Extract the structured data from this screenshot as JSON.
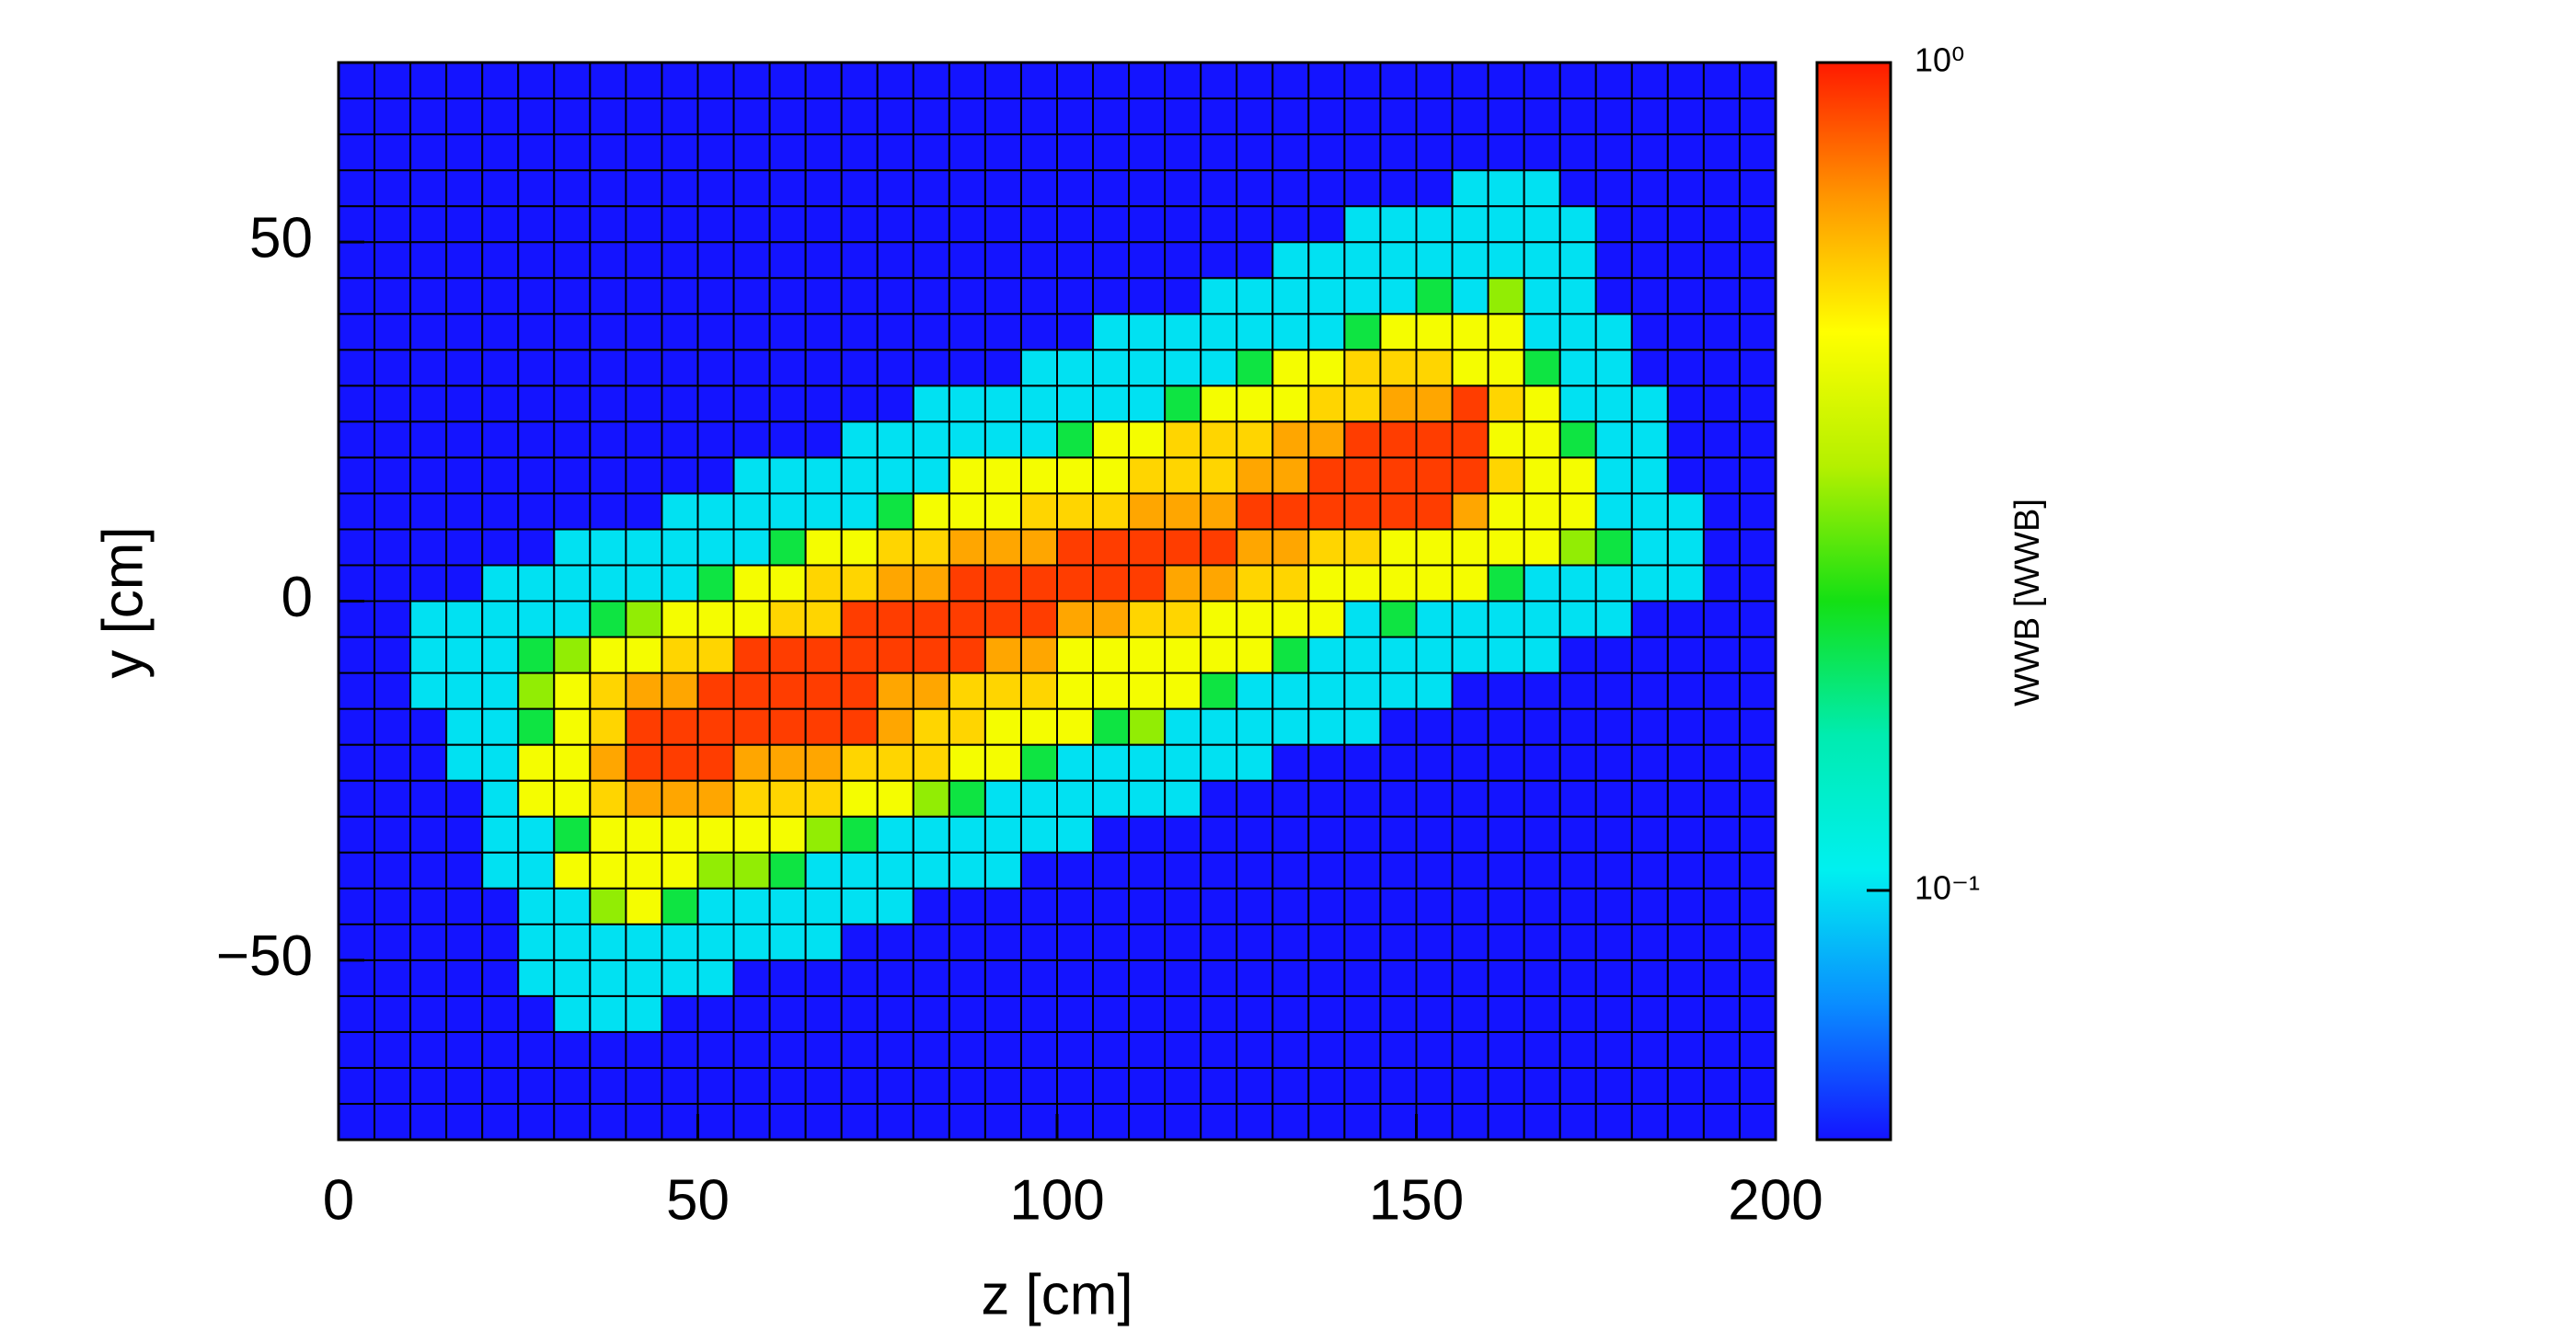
{
  "chart_data": {
    "type": "heatmap",
    "xlabel": "z [cm]",
    "ylabel": "y [cm]",
    "zlabel": "WWB [WWB]",
    "xlim": [
      0,
      200
    ],
    "ylim": [
      -75,
      75
    ],
    "zlim": [
      0.05,
      1
    ],
    "zlog": true,
    "xticks": [
      0,
      50,
      100,
      150,
      200
    ],
    "yticks": [
      {
        "value": -50,
        "label": "−50"
      },
      0,
      50
    ],
    "zticks": [
      {
        "value": 0.1,
        "label": "10⁻¹"
      },
      {
        "value": 1,
        "label": "10⁰"
      }
    ],
    "colormap": [
      "#1414ff",
      "#0a8cff",
      "#00f0f0",
      "#00ecb0",
      "#14e014",
      "#b4f000",
      "#ffff00",
      "#ff9600",
      "#ff1a00"
    ],
    "grid_color": "#000000",
    "xbins": [
      0,
      5,
      10,
      15,
      20,
      25,
      30,
      35,
      40,
      45,
      50,
      55,
      60,
      65,
      70,
      75,
      80,
      85,
      90,
      95,
      100,
      105,
      110,
      115,
      120,
      125,
      130,
      135,
      140,
      145,
      150,
      155,
      160,
      165,
      170,
      175,
      180,
      185,
      190,
      195,
      200
    ],
    "ybins": [
      -75,
      -70,
      -65,
      -60,
      -55,
      -50,
      -45,
      -40,
      -35,
      -30,
      -25,
      -20,
      -15,
      -10,
      -5,
      0,
      5,
      10,
      15,
      20,
      25,
      30,
      35,
      40,
      45,
      50,
      55,
      60,
      65,
      70,
      75
    ],
    "values": [
      [
        0.05,
        0.05,
        0.05,
        0.05,
        0.05,
        0.05,
        0.05,
        0.05,
        0.05,
        0.05,
        0.05,
        0.05,
        0.05,
        0.05,
        0.05,
        0.05,
        0.05,
        0.05,
        0.05,
        0.05,
        0.05,
        0.05,
        0.05,
        0.05,
        0.05,
        0.05,
        0.05,
        0.05,
        0.05,
        0.05,
        0.05,
        0.05,
        0.05,
        0.05,
        0.05,
        0.05,
        0.05,
        0.05,
        0.05,
        0.05
      ],
      [
        0.05,
        0.05,
        0.05,
        0.05,
        0.05,
        0.05,
        0.05,
        0.05,
        0.05,
        0.05,
        0.05,
        0.05,
        0.05,
        0.05,
        0.05,
        0.05,
        0.05,
        0.05,
        0.05,
        0.05,
        0.05,
        0.05,
        0.05,
        0.05,
        0.05,
        0.05,
        0.05,
        0.05,
        0.05,
        0.05,
        0.05,
        0.05,
        0.05,
        0.05,
        0.05,
        0.05,
        0.05,
        0.05,
        0.05,
        0.05
      ],
      [
        0.05,
        0.05,
        0.05,
        0.05,
        0.05,
        0.05,
        0.05,
        0.05,
        0.05,
        0.05,
        0.05,
        0.05,
        0.05,
        0.05,
        0.05,
        0.05,
        0.05,
        0.05,
        0.05,
        0.05,
        0.05,
        0.05,
        0.05,
        0.05,
        0.05,
        0.05,
        0.05,
        0.05,
        0.05,
        0.05,
        0.05,
        0.05,
        0.05,
        0.05,
        0.05,
        0.05,
        0.05,
        0.05,
        0.05,
        0.05
      ],
      [
        0.05,
        0.05,
        0.05,
        0.05,
        0.05,
        0.05,
        0.1,
        0.1,
        0.1,
        0.05,
        0.05,
        0.05,
        0.05,
        0.05,
        0.05,
        0.05,
        0.05,
        0.05,
        0.05,
        0.05,
        0.05,
        0.05,
        0.05,
        0.05,
        0.05,
        0.05,
        0.05,
        0.05,
        0.05,
        0.05,
        0.05,
        0.05,
        0.05,
        0.05,
        0.05,
        0.05,
        0.05,
        0.05,
        0.05,
        0.05
      ],
      [
        0.05,
        0.05,
        0.05,
        0.05,
        0.05,
        0.1,
        0.1,
        0.1,
        0.1,
        0.1,
        0.1,
        0.05,
        0.05,
        0.05,
        0.05,
        0.05,
        0.05,
        0.05,
        0.05,
        0.05,
        0.05,
        0.05,
        0.05,
        0.05,
        0.05,
        0.05,
        0.05,
        0.05,
        0.05,
        0.05,
        0.05,
        0.05,
        0.05,
        0.05,
        0.05,
        0.05,
        0.05,
        0.05,
        0.05,
        0.05
      ],
      [
        0.05,
        0.05,
        0.05,
        0.05,
        0.05,
        0.1,
        0.1,
        0.1,
        0.1,
        0.1,
        0.1,
        0.1,
        0.1,
        0.1,
        0.05,
        0.05,
        0.05,
        0.05,
        0.05,
        0.05,
        0.05,
        0.05,
        0.05,
        0.05,
        0.05,
        0.05,
        0.05,
        0.05,
        0.05,
        0.05,
        0.05,
        0.05,
        0.05,
        0.05,
        0.05,
        0.05,
        0.05,
        0.05,
        0.05,
        0.05
      ],
      [
        0.05,
        0.05,
        0.05,
        0.05,
        0.05,
        0.1,
        0.1,
        0.3,
        0.45,
        0.2,
        0.1,
        0.1,
        0.1,
        0.1,
        0.1,
        0.1,
        0.05,
        0.05,
        0.05,
        0.05,
        0.05,
        0.05,
        0.05,
        0.05,
        0.05,
        0.05,
        0.05,
        0.05,
        0.05,
        0.05,
        0.05,
        0.05,
        0.05,
        0.05,
        0.05,
        0.05,
        0.05,
        0.05,
        0.05,
        0.05
      ],
      [
        0.05,
        0.05,
        0.05,
        0.05,
        0.1,
        0.1,
        0.45,
        0.45,
        0.45,
        0.45,
        0.3,
        0.3,
        0.2,
        0.1,
        0.1,
        0.1,
        0.1,
        0.1,
        0.1,
        0.05,
        0.05,
        0.05,
        0.05,
        0.05,
        0.05,
        0.05,
        0.05,
        0.05,
        0.05,
        0.05,
        0.05,
        0.05,
        0.05,
        0.05,
        0.05,
        0.05,
        0.05,
        0.05,
        0.05,
        0.05
      ],
      [
        0.05,
        0.05,
        0.05,
        0.05,
        0.1,
        0.1,
        0.2,
        0.45,
        0.45,
        0.45,
        0.45,
        0.45,
        0.45,
        0.3,
        0.2,
        0.1,
        0.1,
        0.1,
        0.1,
        0.1,
        0.1,
        0.05,
        0.05,
        0.05,
        0.05,
        0.05,
        0.05,
        0.05,
        0.05,
        0.05,
        0.05,
        0.05,
        0.05,
        0.05,
        0.05,
        0.05,
        0.05,
        0.05,
        0.05,
        0.05
      ],
      [
        0.05,
        0.05,
        0.05,
        0.05,
        0.1,
        0.45,
        0.45,
        0.55,
        0.65,
        0.65,
        0.65,
        0.55,
        0.55,
        0.55,
        0.45,
        0.45,
        0.3,
        0.2,
        0.1,
        0.1,
        0.1,
        0.1,
        0.1,
        0.1,
        0.05,
        0.05,
        0.05,
        0.05,
        0.05,
        0.05,
        0.05,
        0.05,
        0.05,
        0.05,
        0.05,
        0.05,
        0.05,
        0.05,
        0.05,
        0.05
      ],
      [
        0.05,
        0.05,
        0.05,
        0.1,
        0.1,
        0.45,
        0.45,
        0.65,
        0.9,
        0.9,
        0.9,
        0.65,
        0.65,
        0.65,
        0.55,
        0.55,
        0.55,
        0.45,
        0.45,
        0.2,
        0.1,
        0.1,
        0.1,
        0.1,
        0.1,
        0.1,
        0.05,
        0.05,
        0.05,
        0.05,
        0.05,
        0.05,
        0.05,
        0.05,
        0.05,
        0.05,
        0.05,
        0.05,
        0.05,
        0.05
      ],
      [
        0.05,
        0.05,
        0.05,
        0.1,
        0.1,
        0.2,
        0.45,
        0.55,
        0.9,
        0.9,
        0.9,
        0.9,
        0.9,
        0.9,
        0.9,
        0.65,
        0.55,
        0.55,
        0.45,
        0.45,
        0.45,
        0.2,
        0.3,
        0.1,
        0.1,
        0.1,
        0.1,
        0.1,
        0.1,
        0.05,
        0.05,
        0.05,
        0.05,
        0.05,
        0.05,
        0.05,
        0.05,
        0.05,
        0.05,
        0.05
      ],
      [
        0.05,
        0.05,
        0.1,
        0.1,
        0.1,
        0.3,
        0.45,
        0.55,
        0.65,
        0.65,
        0.9,
        0.9,
        0.9,
        0.9,
        0.9,
        0.65,
        0.65,
        0.55,
        0.55,
        0.55,
        0.45,
        0.45,
        0.45,
        0.45,
        0.2,
        0.1,
        0.1,
        0.1,
        0.1,
        0.1,
        0.1,
        0.05,
        0.05,
        0.05,
        0.05,
        0.05,
        0.05,
        0.05,
        0.05,
        0.05
      ],
      [
        0.05,
        0.05,
        0.1,
        0.1,
        0.1,
        0.2,
        0.3,
        0.45,
        0.45,
        0.55,
        0.55,
        0.9,
        0.9,
        0.9,
        0.9,
        0.9,
        0.9,
        0.9,
        0.65,
        0.65,
        0.45,
        0.45,
        0.45,
        0.45,
        0.45,
        0.45,
        0.2,
        0.1,
        0.1,
        0.1,
        0.1,
        0.1,
        0.1,
        0.1,
        0.05,
        0.05,
        0.05,
        0.05,
        0.05,
        0.05
      ],
      [
        0.05,
        0.05,
        0.1,
        0.1,
        0.1,
        0.1,
        0.1,
        0.2,
        0.3,
        0.45,
        0.45,
        0.45,
        0.55,
        0.55,
        0.9,
        0.9,
        0.9,
        0.9,
        0.9,
        0.9,
        0.65,
        0.65,
        0.55,
        0.55,
        0.45,
        0.45,
        0.45,
        0.45,
        0.1,
        0.2,
        0.1,
        0.1,
        0.1,
        0.1,
        0.1,
        0.1,
        0.05,
        0.05,
        0.05,
        0.05
      ],
      [
        0.05,
        0.05,
        0.05,
        0.05,
        0.1,
        0.1,
        0.1,
        0.1,
        0.1,
        0.1,
        0.2,
        0.45,
        0.45,
        0.55,
        0.55,
        0.65,
        0.65,
        0.9,
        0.9,
        0.9,
        0.9,
        0.9,
        0.9,
        0.65,
        0.65,
        0.55,
        0.55,
        0.45,
        0.45,
        0.45,
        0.45,
        0.45,
        0.2,
        0.1,
        0.1,
        0.1,
        0.1,
        0.1,
        0.05,
        0.05
      ],
      [
        0.05,
        0.05,
        0.05,
        0.05,
        0.05,
        0.05,
        0.1,
        0.1,
        0.1,
        0.1,
        0.1,
        0.1,
        0.2,
        0.45,
        0.45,
        0.55,
        0.55,
        0.65,
        0.65,
        0.65,
        0.9,
        0.9,
        0.9,
        0.9,
        0.9,
        0.65,
        0.65,
        0.55,
        0.55,
        0.45,
        0.45,
        0.45,
        0.45,
        0.45,
        0.3,
        0.2,
        0.1,
        0.1,
        0.05,
        0.05
      ],
      [
        0.05,
        0.05,
        0.05,
        0.05,
        0.05,
        0.05,
        0.05,
        0.05,
        0.05,
        0.1,
        0.1,
        0.1,
        0.1,
        0.1,
        0.1,
        0.2,
        0.45,
        0.45,
        0.45,
        0.55,
        0.55,
        0.55,
        0.65,
        0.65,
        0.65,
        0.9,
        0.9,
        0.9,
        0.9,
        0.9,
        0.9,
        0.65,
        0.45,
        0.45,
        0.45,
        0.1,
        0.1,
        0.1,
        0.05,
        0.05
      ],
      [
        0.05,
        0.05,
        0.05,
        0.05,
        0.05,
        0.05,
        0.05,
        0.05,
        0.05,
        0.05,
        0.05,
        0.1,
        0.1,
        0.1,
        0.1,
        0.1,
        0.1,
        0.45,
        0.45,
        0.45,
        0.45,
        0.45,
        0.55,
        0.55,
        0.55,
        0.65,
        0.65,
        0.9,
        0.9,
        0.9,
        0.9,
        0.9,
        0.55,
        0.45,
        0.45,
        0.1,
        0.1,
        0.05,
        0.05,
        0.05
      ],
      [
        0.05,
        0.05,
        0.05,
        0.05,
        0.05,
        0.05,
        0.05,
        0.05,
        0.05,
        0.05,
        0.05,
        0.05,
        0.05,
        0.05,
        0.1,
        0.1,
        0.1,
        0.1,
        0.1,
        0.1,
        0.2,
        0.45,
        0.45,
        0.55,
        0.55,
        0.55,
        0.65,
        0.65,
        0.9,
        0.9,
        0.9,
        0.9,
        0.45,
        0.45,
        0.2,
        0.1,
        0.1,
        0.05,
        0.05,
        0.05
      ],
      [
        0.05,
        0.05,
        0.05,
        0.05,
        0.05,
        0.05,
        0.05,
        0.05,
        0.05,
        0.05,
        0.05,
        0.05,
        0.05,
        0.05,
        0.05,
        0.05,
        0.1,
        0.1,
        0.1,
        0.1,
        0.1,
        0.1,
        0.1,
        0.2,
        0.45,
        0.45,
        0.45,
        0.55,
        0.55,
        0.65,
        0.65,
        0.9,
        0.55,
        0.45,
        0.1,
        0.1,
        0.1,
        0.05,
        0.05,
        0.05
      ],
      [
        0.05,
        0.05,
        0.05,
        0.05,
        0.05,
        0.05,
        0.05,
        0.05,
        0.05,
        0.05,
        0.05,
        0.05,
        0.05,
        0.05,
        0.05,
        0.05,
        0.05,
        0.05,
        0.05,
        0.1,
        0.1,
        0.1,
        0.1,
        0.1,
        0.1,
        0.2,
        0.45,
        0.45,
        0.55,
        0.55,
        0.55,
        0.45,
        0.45,
        0.2,
        0.1,
        0.1,
        0.05,
        0.05,
        0.05,
        0.05
      ],
      [
        0.05,
        0.05,
        0.05,
        0.05,
        0.05,
        0.05,
        0.05,
        0.05,
        0.05,
        0.05,
        0.05,
        0.05,
        0.05,
        0.05,
        0.05,
        0.05,
        0.05,
        0.05,
        0.05,
        0.05,
        0.05,
        0.1,
        0.1,
        0.1,
        0.1,
        0.1,
        0.1,
        0.1,
        0.2,
        0.45,
        0.45,
        0.45,
        0.45,
        0.1,
        0.1,
        0.1,
        0.05,
        0.05,
        0.05,
        0.05
      ],
      [
        0.05,
        0.05,
        0.05,
        0.05,
        0.05,
        0.05,
        0.05,
        0.05,
        0.05,
        0.05,
        0.05,
        0.05,
        0.05,
        0.05,
        0.05,
        0.05,
        0.05,
        0.05,
        0.05,
        0.05,
        0.05,
        0.05,
        0.05,
        0.05,
        0.1,
        0.1,
        0.1,
        0.1,
        0.1,
        0.1,
        0.2,
        0.1,
        0.3,
        0.1,
        0.1,
        0.05,
        0.05,
        0.05,
        0.05,
        0.05
      ],
      [
        0.05,
        0.05,
        0.05,
        0.05,
        0.05,
        0.05,
        0.05,
        0.05,
        0.05,
        0.05,
        0.05,
        0.05,
        0.05,
        0.05,
        0.05,
        0.05,
        0.05,
        0.05,
        0.05,
        0.05,
        0.05,
        0.05,
        0.05,
        0.05,
        0.05,
        0.05,
        0.1,
        0.1,
        0.1,
        0.1,
        0.1,
        0.1,
        0.1,
        0.1,
        0.1,
        0.05,
        0.05,
        0.05,
        0.05,
        0.05
      ],
      [
        0.05,
        0.05,
        0.05,
        0.05,
        0.05,
        0.05,
        0.05,
        0.05,
        0.05,
        0.05,
        0.05,
        0.05,
        0.05,
        0.05,
        0.05,
        0.05,
        0.05,
        0.05,
        0.05,
        0.05,
        0.05,
        0.05,
        0.05,
        0.05,
        0.05,
        0.05,
        0.05,
        0.05,
        0.1,
        0.1,
        0.1,
        0.1,
        0.1,
        0.1,
        0.1,
        0.05,
        0.05,
        0.05,
        0.05,
        0.05
      ],
      [
        0.05,
        0.05,
        0.05,
        0.05,
        0.05,
        0.05,
        0.05,
        0.05,
        0.05,
        0.05,
        0.05,
        0.05,
        0.05,
        0.05,
        0.05,
        0.05,
        0.05,
        0.05,
        0.05,
        0.05,
        0.05,
        0.05,
        0.05,
        0.05,
        0.05,
        0.05,
        0.05,
        0.05,
        0.05,
        0.05,
        0.05,
        0.1,
        0.1,
        0.1,
        0.05,
        0.05,
        0.05,
        0.05,
        0.05,
        0.05
      ],
      [
        0.05,
        0.05,
        0.05,
        0.05,
        0.05,
        0.05,
        0.05,
        0.05,
        0.05,
        0.05,
        0.05,
        0.05,
        0.05,
        0.05,
        0.05,
        0.05,
        0.05,
        0.05,
        0.05,
        0.05,
        0.05,
        0.05,
        0.05,
        0.05,
        0.05,
        0.05,
        0.05,
        0.05,
        0.05,
        0.05,
        0.05,
        0.05,
        0.05,
        0.05,
        0.05,
        0.05,
        0.05,
        0.05,
        0.05,
        0.05
      ],
      [
        0.05,
        0.05,
        0.05,
        0.05,
        0.05,
        0.05,
        0.05,
        0.05,
        0.05,
        0.05,
        0.05,
        0.05,
        0.05,
        0.05,
        0.05,
        0.05,
        0.05,
        0.05,
        0.05,
        0.05,
        0.05,
        0.05,
        0.05,
        0.05,
        0.05,
        0.05,
        0.05,
        0.05,
        0.05,
        0.05,
        0.05,
        0.05,
        0.05,
        0.05,
        0.05,
        0.05,
        0.05,
        0.05,
        0.05,
        0.05
      ],
      [
        0.05,
        0.05,
        0.05,
        0.05,
        0.05,
        0.05,
        0.05,
        0.05,
        0.05,
        0.05,
        0.05,
        0.05,
        0.05,
        0.05,
        0.05,
        0.05,
        0.05,
        0.05,
        0.05,
        0.05,
        0.05,
        0.05,
        0.05,
        0.05,
        0.05,
        0.05,
        0.05,
        0.05,
        0.05,
        0.05,
        0.05,
        0.05,
        0.05,
        0.05,
        0.05,
        0.05,
        0.05,
        0.05,
        0.05,
        0.05
      ]
    ]
  }
}
